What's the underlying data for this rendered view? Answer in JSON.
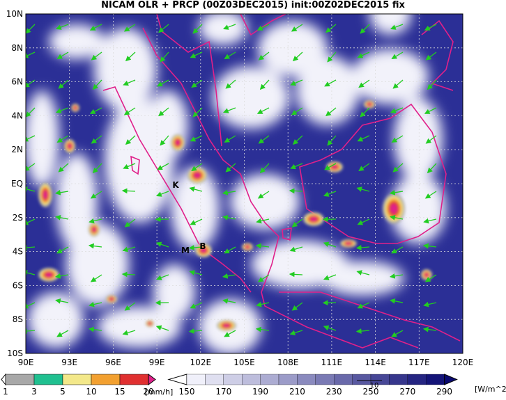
{
  "title": "NICAM OLR + PRCP (00Z03DEC2015) init:00Z02DEC2015 fix",
  "lat_labels": [
    "10N",
    "8N",
    "6N",
    "4N",
    "2N",
    "EQ",
    "2S",
    "4S",
    "6S",
    "8S",
    "10S"
  ],
  "lon_labels": [
    "90E",
    "93E",
    "96E",
    "99E",
    "102E",
    "105E",
    "108E",
    "111E",
    "114E",
    "117E",
    "120E"
  ],
  "places": [
    {
      "label": "K"
    },
    {
      "label": "M"
    },
    {
      "label": "B"
    }
  ],
  "precip_bar": {
    "labels": [
      "1",
      "3",
      "5",
      "10",
      "15",
      "20"
    ],
    "unit": "[mm/h]"
  },
  "olr_bar": {
    "labels": [
      "150",
      "170",
      "190",
      "210",
      "230",
      "250",
      "270",
      "290"
    ],
    "unit": "[W/m^2]"
  },
  "vector_ref": "10"
}
